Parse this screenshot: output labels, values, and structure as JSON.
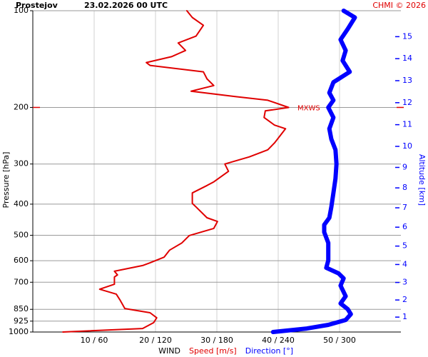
{
  "chart_data": {
    "type": "profile",
    "title": "Prostejov",
    "subtitle": "23.02.2026 00 UTC",
    "credit": "CHMI © 2026",
    "y_label": "Pressure [hPa]",
    "y2_label": "Altitude [km]",
    "legend_title": "WIND",
    "y_scale": "log",
    "ylim": [
      1000,
      100
    ],
    "yticks": [
      100,
      200,
      300,
      400,
      500,
      600,
      700,
      850,
      925,
      1000
    ],
    "xlim": [
      0,
      60
    ],
    "x2lim": [
      0,
      360
    ],
    "xticks": [
      {
        "value": 10,
        "label": "10 / 60"
      },
      {
        "value": 20,
        "label": "20 / 120"
      },
      {
        "value": 30,
        "label": "30 / 180"
      },
      {
        "value": 40,
        "label": "40 / 240"
      },
      {
        "value": 50,
        "label": "50 / 300"
      }
    ],
    "y2_scale": "standard-atmosphere",
    "y2ticks": [
      1,
      2,
      3,
      4,
      5,
      6,
      7,
      8,
      9,
      10,
      11,
      12,
      13,
      14,
      15
    ],
    "y2_color": "#0000ff",
    "grid": true,
    "annotation": {
      "text": "MXWS",
      "pressure": 200,
      "color": "#e00000"
    },
    "series": [
      {
        "name": "Speed [m/s]",
        "color": "#e00000",
        "axis": "x",
        "width": 2,
        "pressure": [
          1000,
          975,
          935,
          903,
          871,
          845,
          794,
          762,
          736,
          710,
          674,
          664,
          647,
          621,
          609,
          585,
          556,
          528,
          501,
          476,
          453,
          441,
          408,
          398,
          369,
          350,
          341,
          316,
          300,
          285,
          271,
          258,
          233,
          227,
          215,
          205,
          200,
          190,
          185,
          178,
          171,
          163,
          155,
          148,
          145,
          139,
          133,
          126,
          120,
          111,
          105,
          100
        ],
        "values": [
          4.9,
          17.9,
          19.7,
          20.2,
          19.1,
          15.0,
          14.2,
          13.6,
          10.9,
          13.3,
          13.3,
          13.8,
          13.3,
          17.9,
          19.1,
          21.4,
          22.3,
          24.3,
          25.5,
          29.5,
          30.1,
          28.4,
          26.6,
          26.0,
          26.0,
          28.4,
          29.5,
          31.9,
          31.3,
          35.3,
          38.3,
          39.4,
          41.2,
          39.4,
          37.7,
          37.9,
          41.7,
          38.3,
          33.0,
          25.8,
          29.5,
          28.4,
          27.8,
          19.1,
          18.5,
          22.6,
          24.9,
          23.7,
          26.6,
          27.8,
          26.0,
          25.1
        ]
      },
      {
        "name": "Direction [°]",
        "color": "#0000ff",
        "axis": "x2",
        "width": 6,
        "pressure": [
          1000,
          975,
          950,
          917,
          880,
          849,
          815,
          774,
          717,
          681,
          657,
          631,
          599,
          570,
          528,
          489,
          464,
          441,
          408,
          369,
          333,
          300,
          271,
          251,
          233,
          215,
          200,
          190,
          180,
          167,
          155,
          143,
          133,
          123,
          114,
          105,
          100
        ],
        "values": [
          235,
          268,
          289,
          306,
          311,
          308,
          301,
          306,
          301,
          304,
          299,
          287,
          289,
          289,
          289,
          285,
          285,
          290,
          292,
          294,
          296,
          297,
          296,
          292,
          290,
          294,
          289,
          294,
          290,
          294,
          310,
          303,
          306,
          301,
          308,
          315,
          304
        ]
      }
    ]
  }
}
